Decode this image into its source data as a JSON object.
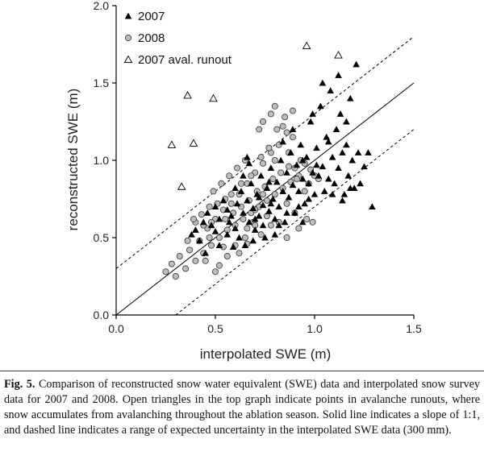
{
  "caption": {
    "label": "Fig. 5.",
    "text": " Comparison of reconstructed snow water equivalent (SWE) data and interpolated snow survey data for 2007 and 2008. Open triangles in the top graph indicate points in avalanche runouts, where snow accumulates from avalanching throughout the ablation season. Solid line indicates a slope of 1:1, and dashed line indicates a range of expected uncertainty in the interpolated SWE data (300 mm)."
  },
  "chart_data": {
    "type": "scatter",
    "xlabel": "interpolated SWE (m)",
    "ylabel": "reconstructed SWE (m)",
    "xlim": [
      0,
      1.5
    ],
    "ylim": [
      0,
      2.0
    ],
    "xticks": [
      "0.0",
      "0.5",
      "1.0",
      "1.5"
    ],
    "yticks": [
      "0.0",
      "0.5",
      "1.0",
      "1.5",
      "2.0"
    ],
    "legend_position": "top-left",
    "grid": false,
    "lines": [
      {
        "kind": "solid",
        "description": "1:1",
        "points": [
          [
            0,
            0
          ],
          [
            1.5,
            1.5
          ]
        ]
      },
      {
        "kind": "dashed",
        "points": [
          [
            0,
            0.3
          ],
          [
            1.5,
            1.8
          ]
        ]
      },
      {
        "kind": "dashed",
        "points": [
          [
            0.3,
            0
          ],
          [
            1.5,
            1.2
          ]
        ]
      }
    ],
    "series": [
      {
        "name": "2007",
        "marker": "filled-triangle",
        "points": [
          [
            0.38,
            0.52
          ],
          [
            0.4,
            0.55
          ],
          [
            0.42,
            0.48
          ],
          [
            0.44,
            0.6
          ],
          [
            0.46,
            0.66
          ],
          [
            0.48,
            0.58
          ],
          [
            0.5,
            0.7
          ],
          [
            0.52,
            0.62
          ],
          [
            0.54,
            0.74
          ],
          [
            0.56,
            0.68
          ],
          [
            0.58,
            0.64
          ],
          [
            0.6,
            0.56
          ],
          [
            0.61,
            0.72
          ],
          [
            0.62,
            0.5
          ],
          [
            0.63,
            0.8
          ],
          [
            0.64,
            0.66
          ],
          [
            0.65,
            0.45
          ],
          [
            0.66,
            0.74
          ],
          [
            0.67,
            0.6
          ],
          [
            0.68,
            0.85
          ],
          [
            0.69,
            0.69
          ],
          [
            0.7,
            0.55
          ],
          [
            0.71,
            0.78
          ],
          [
            0.72,
            0.64
          ],
          [
            0.73,
            0.9
          ],
          [
            0.74,
            0.71
          ],
          [
            0.75,
            0.5
          ],
          [
            0.76,
            0.82
          ],
          [
            0.77,
            0.67
          ],
          [
            0.78,
            0.95
          ],
          [
            0.79,
            0.75
          ],
          [
            0.8,
            0.62
          ],
          [
            0.81,
            0.86
          ],
          [
            0.82,
            0.7
          ],
          [
            0.83,
            1.0
          ],
          [
            0.84,
            0.8
          ],
          [
            0.85,
            0.6
          ],
          [
            0.86,
            0.92
          ],
          [
            0.87,
            0.76
          ],
          [
            0.88,
            1.05
          ],
          [
            0.89,
            0.84
          ],
          [
            0.9,
            0.66
          ],
          [
            0.91,
            0.97
          ],
          [
            0.92,
            0.8
          ],
          [
            0.93,
            1.1
          ],
          [
            0.94,
            0.88
          ],
          [
            0.95,
            0.72
          ],
          [
            0.96,
            1.02
          ],
          [
            0.97,
            0.85
          ],
          [
            0.98,
            1.25
          ],
          [
            0.99,
            0.92
          ],
          [
            1.0,
            0.78
          ],
          [
            1.01,
            1.08
          ],
          [
            1.02,
            0.9
          ],
          [
            1.03,
            1.35
          ],
          [
            1.04,
            0.96
          ],
          [
            1.05,
            0.8
          ],
          [
            1.06,
            1.15
          ],
          [
            1.07,
            0.88
          ],
          [
            1.08,
            1.45
          ],
          [
            1.09,
            1.02
          ],
          [
            1.1,
            0.85
          ],
          [
            1.11,
            1.2
          ],
          [
            1.12,
            0.95
          ],
          [
            1.13,
            1.3
          ],
          [
            1.14,
            1.05
          ],
          [
            1.15,
            0.78
          ],
          [
            1.16,
            1.1
          ],
          [
            1.17,
            0.9
          ],
          [
            1.18,
            1.4
          ],
          [
            1.19,
            1.0
          ],
          [
            1.2,
            0.82
          ],
          [
            1.21,
            1.62
          ],
          [
            1.22,
            1.05
          ],
          [
            1.23,
            0.85
          ],
          [
            1.25,
            0.96
          ],
          [
            1.27,
            1.05
          ],
          [
            1.29,
            0.7
          ],
          [
            0.45,
            0.4
          ],
          [
            0.52,
            0.45
          ],
          [
            0.56,
            0.52
          ],
          [
            0.59,
            0.44
          ],
          [
            0.64,
            0.9
          ],
          [
            0.67,
            0.98
          ],
          [
            0.7,
            0.62
          ],
          [
            0.74,
            0.58
          ],
          [
            0.78,
            0.72
          ],
          [
            0.82,
            0.58
          ],
          [
            0.86,
            0.66
          ],
          [
            0.92,
            0.7
          ],
          [
            0.97,
            0.75
          ],
          [
            1.01,
            0.97
          ],
          [
            1.04,
            1.5
          ],
          [
            1.09,
            0.78
          ],
          [
            1.14,
            0.74
          ],
          [
            1.18,
            0.82
          ],
          [
            0.6,
            0.82
          ],
          [
            0.66,
            1.02
          ],
          [
            0.72,
            0.76
          ],
          [
            0.77,
            0.86
          ],
          [
            0.84,
            1.12
          ],
          [
            0.89,
            1.2
          ],
          [
            0.94,
            1.0
          ],
          [
            0.99,
            1.3
          ],
          [
            1.07,
            1.12
          ],
          [
            1.12,
            1.55
          ],
          [
            1.16,
            1.25
          ],
          [
            0.5,
            0.54
          ],
          [
            0.57,
            0.6
          ],
          [
            0.69,
            0.48
          ],
          [
            0.8,
            0.52
          ],
          [
            0.94,
            0.6
          ]
        ]
      },
      {
        "name": "2008",
        "marker": "gray-circle",
        "points": [
          [
            0.25,
            0.28
          ],
          [
            0.28,
            0.33
          ],
          [
            0.3,
            0.25
          ],
          [
            0.32,
            0.38
          ],
          [
            0.35,
            0.3
          ],
          [
            0.37,
            0.42
          ],
          [
            0.4,
            0.35
          ],
          [
            0.42,
            0.48
          ],
          [
            0.44,
            0.4
          ],
          [
            0.46,
            0.56
          ],
          [
            0.48,
            0.45
          ],
          [
            0.5,
            0.62
          ],
          [
            0.52,
            0.5
          ],
          [
            0.54,
            0.68
          ],
          [
            0.56,
            0.55
          ],
          [
            0.58,
            0.72
          ],
          [
            0.6,
            0.58
          ],
          [
            0.62,
            0.78
          ],
          [
            0.64,
            0.62
          ],
          [
            0.66,
            0.85
          ],
          [
            0.68,
            0.66
          ],
          [
            0.7,
            0.92
          ],
          [
            0.72,
            0.7
          ],
          [
            0.74,
            0.98
          ],
          [
            0.76,
            0.74
          ],
          [
            0.78,
            1.05
          ],
          [
            0.8,
            0.78
          ],
          [
            0.82,
            1.1
          ],
          [
            0.84,
            0.82
          ],
          [
            0.86,
            1.18
          ],
          [
            0.88,
            0.86
          ],
          [
            0.9,
            0.95
          ],
          [
            0.92,
            0.9
          ],
          [
            0.95,
            0.98
          ],
          [
            0.98,
            0.94
          ],
          [
            1.0,
            0.9
          ],
          [
            0.36,
            0.48
          ],
          [
            0.4,
            0.6
          ],
          [
            0.43,
            0.65
          ],
          [
            0.47,
            0.7
          ],
          [
            0.49,
            0.8
          ],
          [
            0.51,
            0.72
          ],
          [
            0.53,
            0.85
          ],
          [
            0.55,
            0.62
          ],
          [
            0.57,
            0.9
          ],
          [
            0.59,
            0.66
          ],
          [
            0.61,
            0.95
          ],
          [
            0.63,
            0.7
          ],
          [
            0.65,
            1.0
          ],
          [
            0.67,
            0.74
          ],
          [
            0.69,
            0.6
          ],
          [
            0.71,
            0.8
          ],
          [
            0.73,
            1.02
          ],
          [
            0.75,
            0.83
          ],
          [
            0.77,
            1.08
          ],
          [
            0.79,
            0.88
          ],
          [
            0.81,
            1.2
          ],
          [
            0.83,
            0.92
          ],
          [
            0.85,
            1.28
          ],
          [
            0.87,
            0.96
          ],
          [
            0.89,
            1.32
          ],
          [
            0.91,
            0.88
          ],
          [
            0.93,
            1.0
          ],
          [
            0.78,
            1.3
          ],
          [
            0.8,
            1.35
          ],
          [
            0.74,
            1.25
          ],
          [
            0.72,
            1.2
          ],
          [
            0.84,
            1.22
          ],
          [
            0.89,
            1.15
          ],
          [
            0.97,
            0.85
          ],
          [
            0.99,
            0.6
          ],
          [
            0.6,
            0.45
          ],
          [
            0.62,
            0.4
          ],
          [
            0.65,
            0.5
          ],
          [
            0.52,
            0.32
          ],
          [
            0.56,
            0.38
          ],
          [
            0.5,
            0.28
          ],
          [
            0.45,
            0.35
          ],
          [
            0.66,
            0.56
          ],
          [
            0.7,
            0.68
          ],
          [
            0.76,
            0.64
          ],
          [
            0.82,
            0.6
          ],
          [
            0.86,
            0.72
          ],
          [
            0.9,
            0.66
          ],
          [
            0.95,
            0.8
          ],
          [
            1.02,
            0.88
          ],
          [
            0.58,
            0.78
          ],
          [
            0.68,
            0.9
          ],
          [
            0.8,
            1.0
          ],
          [
            0.87,
            1.05
          ],
          [
            0.39,
            0.62
          ],
          [
            0.44,
            0.58
          ],
          [
            0.48,
            0.6
          ],
          [
            0.55,
            0.75
          ],
          [
            0.63,
            0.85
          ],
          [
            0.74,
            0.78
          ],
          [
            0.86,
            0.5
          ],
          [
            0.92,
            0.56
          ],
          [
            0.96,
            0.62
          ],
          [
            0.7,
            0.58
          ],
          [
            0.73,
            0.52
          ],
          [
            0.78,
            0.58
          ],
          [
            0.66,
            0.46
          ],
          [
            0.54,
            0.44
          ],
          [
            0.47,
            0.5
          ]
        ]
      },
      {
        "name": "2007 aval. runout",
        "marker": "open-triangle",
        "points": [
          [
            0.28,
            1.1
          ],
          [
            0.33,
            0.83
          ],
          [
            0.36,
            1.42
          ],
          [
            0.39,
            1.11
          ],
          [
            0.49,
            1.4
          ],
          [
            0.96,
            1.74
          ],
          [
            1.12,
            1.68
          ]
        ]
      }
    ]
  }
}
